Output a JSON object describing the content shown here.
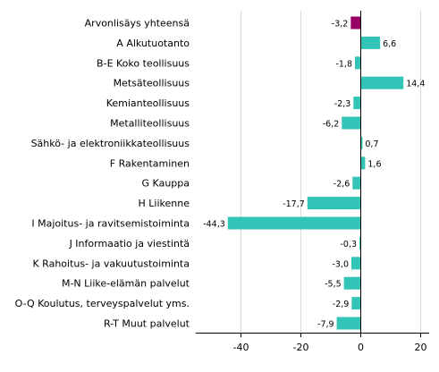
{
  "chart_data": {
    "type": "bar",
    "orientation": "horizontal",
    "categories": [
      "Arvonlisäys yhteensä",
      "A Alkutuotanto",
      "B-E Koko teollisuus",
      "Metsäteollisuus",
      "Kemianteollisuus",
      "Metalliteollisuus",
      "Sähkö- ja elektroniikkateollisuus",
      "F Rakentaminen",
      "G Kauppa",
      "H Liikenne",
      "I Majoitus- ja ravitsemistoiminta",
      "J Informaatio ja viestintä",
      "K Rahoitus- ja vakuutustoiminta",
      "M-N Liike-elämän palvelut",
      "O-Q Koulutus, terveyspalvelut yms.",
      "R-T Muut palvelut"
    ],
    "values": [
      -3.2,
      6.6,
      -1.8,
      14.4,
      -2.3,
      -6.2,
      0.7,
      1.6,
      -2.6,
      -17.7,
      -44.3,
      -0.3,
      -3.0,
      -5.5,
      -2.9,
      -7.9
    ],
    "value_labels": [
      "-3,2",
      "6,6",
      "-1,8",
      "14,4",
      "-2,3",
      "-6,2",
      "0,7",
      "1,6",
      "-2,6",
      "-17,7",
      "-44,3",
      "-0,3",
      "-3,0",
      "-5,5",
      "-2,9",
      "-7,9"
    ],
    "xlim": [
      -55,
      23
    ],
    "xticks": [
      -40,
      -20,
      0,
      20
    ],
    "xtick_labels": [
      "-40",
      "-20",
      "0",
      "20"
    ],
    "grid": "vertical",
    "colors": {
      "total": "#990066",
      "bars": "#33c4b8",
      "grid": "#d9d9d9"
    }
  }
}
